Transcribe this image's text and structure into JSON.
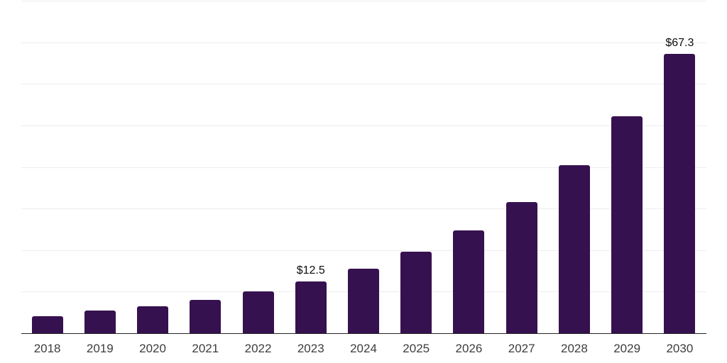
{
  "chart_data": {
    "type": "bar",
    "title": "",
    "categories": [
      "2018",
      "2019",
      "2020",
      "2021",
      "2022",
      "2023",
      "2024",
      "2025",
      "2026",
      "2027",
      "2028",
      "2029",
      "2030"
    ],
    "values": [
      4.1,
      5.4,
      6.5,
      8.1,
      10.0,
      12.5,
      15.5,
      19.6,
      24.7,
      31.6,
      40.4,
      52.3,
      67.3
    ],
    "data_labels": [
      {
        "category": "2023",
        "text": "$12.5"
      },
      {
        "category": "2030",
        "text": "$67.3"
      }
    ],
    "xlabel": "",
    "ylabel": "",
    "ylim": [
      0,
      80
    ],
    "gridline_step": 10,
    "grid": "horizontal-only",
    "legend": "none",
    "colors": {
      "bar": "#36114F",
      "gridline": "#ededed",
      "axis_line": "#262626",
      "tick_label": "#3d3d3d",
      "data_label": "#0d0d0d",
      "background": "#ffffff"
    }
  }
}
